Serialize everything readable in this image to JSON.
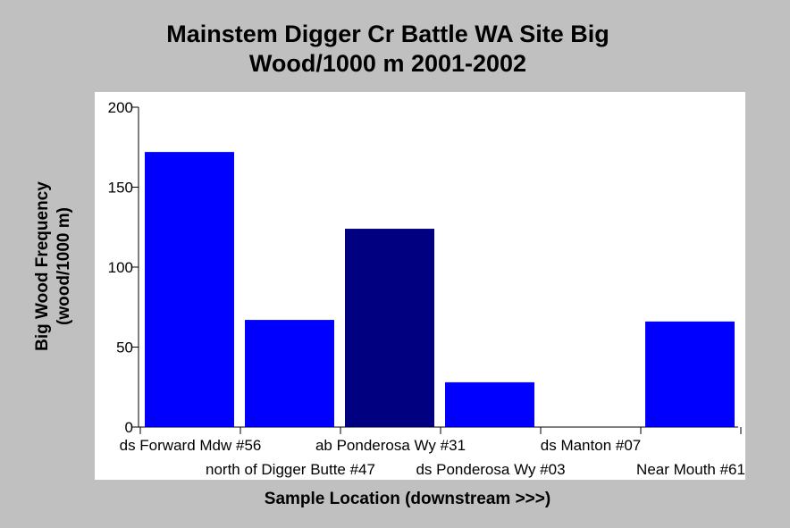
{
  "chart_data": {
    "type": "bar",
    "title_lines": [
      "Mainstem Digger Cr Battle WA Site Big",
      "Wood/1000 m 2001-2002"
    ],
    "xlabel": "Sample Location (downstream >>>)",
    "ylabel_lines": [
      "Big Wood Frequency",
      "(wood/1000 m)"
    ],
    "categories": [
      "ds Forward Mdw #56",
      "north of Digger Butte #47",
      "ab Ponderosa Wy #31",
      "ds Ponderosa Wy #03",
      "ds Manton #07",
      "Near Mouth #61"
    ],
    "values": [
      172,
      67,
      124,
      28,
      0,
      66
    ],
    "bar_colors": [
      "#0000ff",
      "#0000ff",
      "#000080",
      "#0000ff",
      "#0000ff",
      "#0000ff"
    ],
    "ylim": [
      0,
      200
    ],
    "yticks": [
      0,
      50,
      100,
      150,
      200
    ],
    "grid": false,
    "legend": "none"
  }
}
